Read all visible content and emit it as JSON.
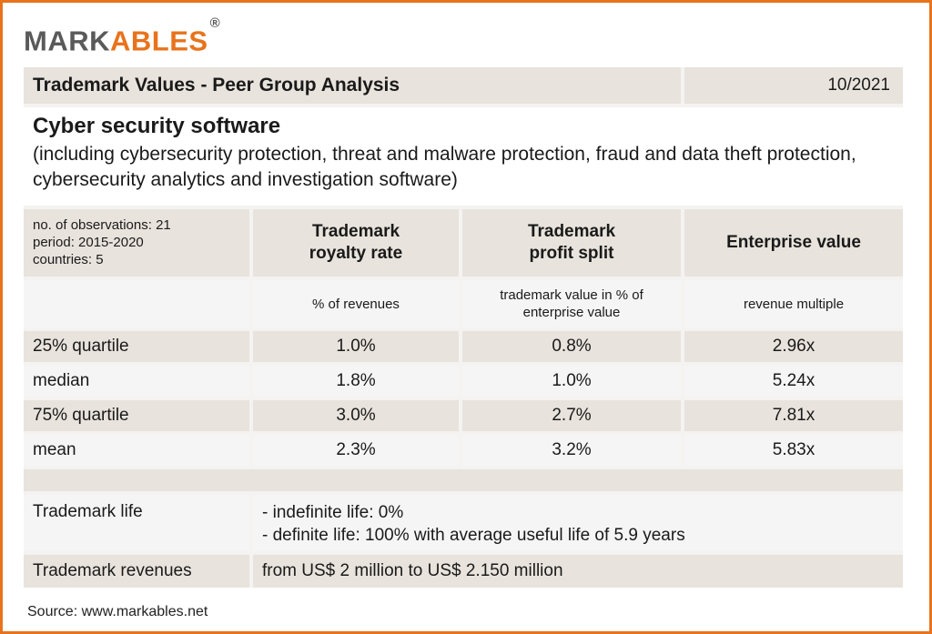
{
  "logo": {
    "part1": "MARK",
    "part2": "ABLES",
    "reg": "®"
  },
  "header": {
    "title": "Trademark Values - Peer Group Analysis",
    "date": "10/2021"
  },
  "subject": {
    "title": "Cyber security software",
    "description": "(including cybersecurity protection, threat and malware protection, fraud and data theft protection, cybersecurity analytics and investigation software)"
  },
  "meta": {
    "observations": "no. of observations: 21",
    "period": "period: 2015-2020",
    "countries": "countries: 5"
  },
  "columns": [
    {
      "title_line1": "Trademark",
      "title_line2": "royalty rate",
      "unit": "% of revenues"
    },
    {
      "title_line1": "Trademark",
      "title_line2": "profit split",
      "unit_line1": "trademark value in % of",
      "unit_line2": "enterprise value"
    },
    {
      "title_line1": "Enterprise value",
      "unit": "revenue multiple"
    }
  ],
  "rows": [
    {
      "label": "25% quartile",
      "values": [
        "1.0%",
        "0.8%",
        "2.96x"
      ]
    },
    {
      "label": "median",
      "values": [
        "1.8%",
        "1.0%",
        "5.24x"
      ]
    },
    {
      "label": "75% quartile",
      "values": [
        "3.0%",
        "2.7%",
        "7.81x"
      ]
    },
    {
      "label": "mean",
      "values": [
        "2.3%",
        "3.2%",
        "5.83x"
      ]
    }
  ],
  "trademark_life": {
    "label": "Trademark life",
    "line1": "- indefinite life: 0%",
    "line2": "- definite life: 100% with average useful life of 5.9 years"
  },
  "trademark_revenues": {
    "label": "Trademark revenues",
    "value": "from US$ 2 million to US$ 2.150 million"
  },
  "source": "Source: www.markables.net"
}
